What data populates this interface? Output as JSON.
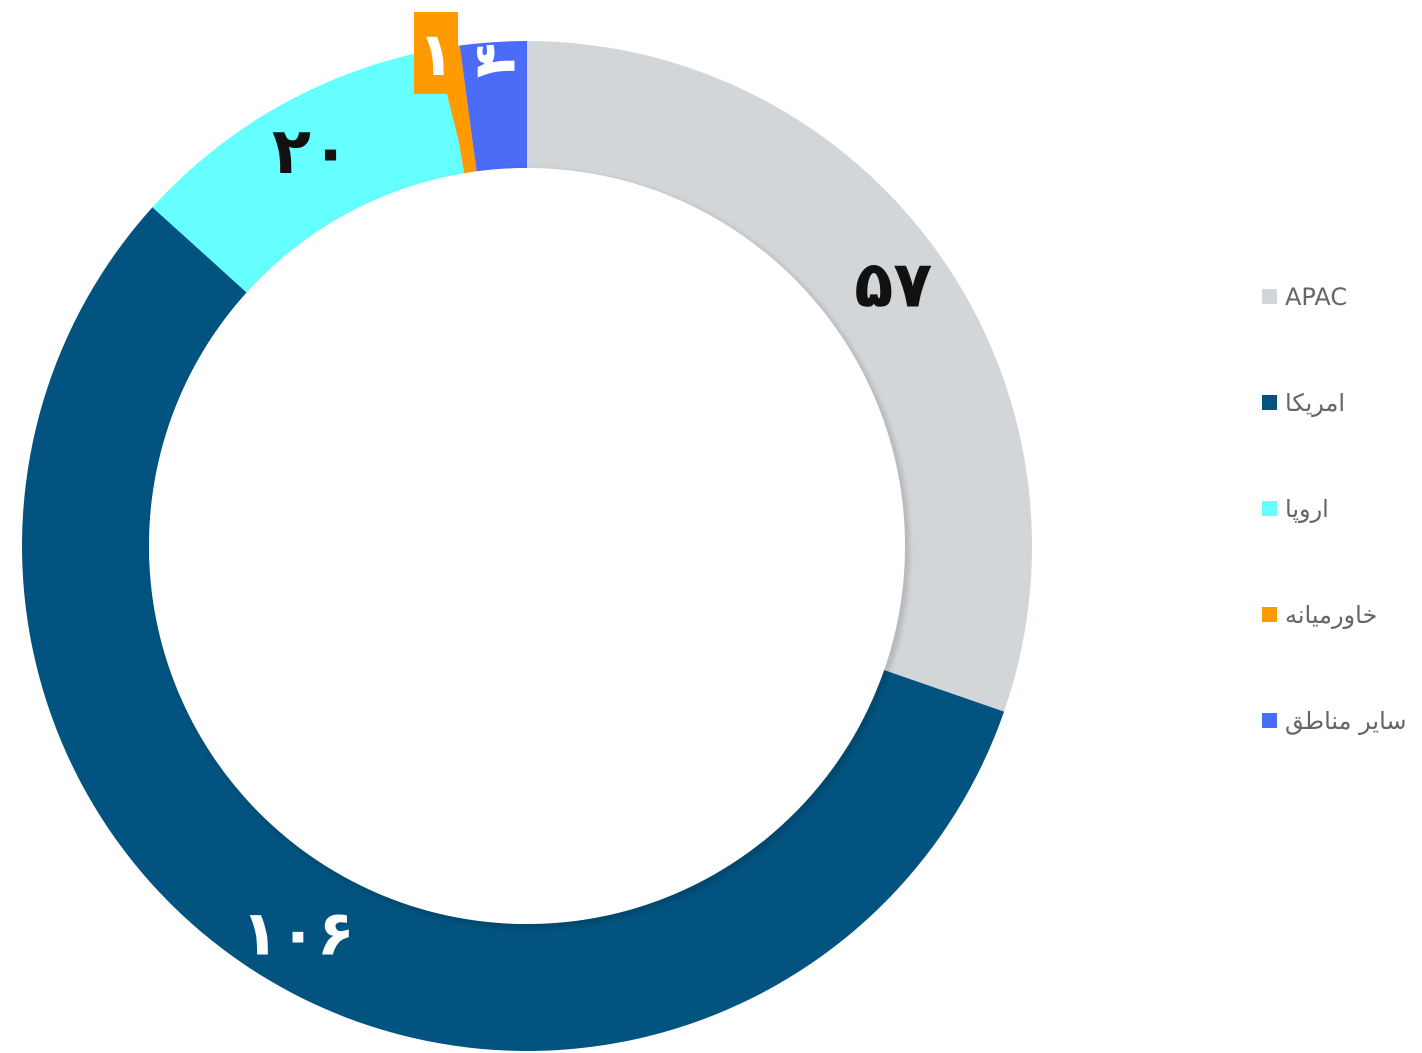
{
  "chart_data": {
    "type": "pie",
    "donut": true,
    "categories": [
      "APAC",
      "امریکا",
      "اروپا",
      "خاورمیانه",
      "سایر مناطق"
    ],
    "values": [
      57,
      106,
      20,
      1,
      4
    ],
    "value_labels": [
      "۵۷",
      "۱۰۶",
      "۲۰",
      "۱",
      "۴"
    ],
    "colors": [
      "#d3d6d9",
      "#02537f",
      "#66ffff",
      "#ff9a00",
      "#4a6cf7"
    ],
    "label_colors": [
      "#111111",
      "#ffffff",
      "#111111",
      "#ffffff",
      "#ffffff"
    ],
    "start": "12 o'clock",
    "direction": "clockwise",
    "legend_position": "right"
  }
}
